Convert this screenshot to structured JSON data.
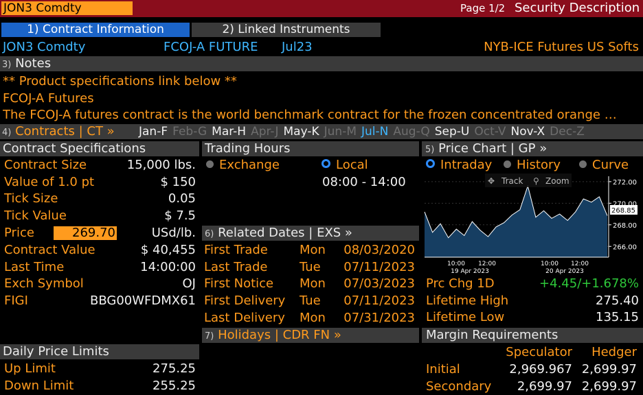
{
  "topbar": {
    "ticker": "JON3 Comdty",
    "page": "Page 1/2",
    "title": "Security Description"
  },
  "tabs": [
    {
      "label": "1) Contract Information"
    },
    {
      "label": "2) Linked Instruments"
    }
  ],
  "security": {
    "ticker": "JON3 Comdty",
    "name": "FCOJ-A FUTURE",
    "month": "Jul23",
    "exchange": "NYB-ICE Futures US Softs"
  },
  "notes": {
    "header_num": "3)",
    "header": "Notes",
    "link_text": "** Product specifications link below **",
    "name": "FCOJ-A Futures",
    "description": "The FCOJ-A futures contract is the world benchmark contract for the frozen concentrated orange …"
  },
  "contracts": {
    "label_num": "4)",
    "label": "Contracts | CT »",
    "months": [
      {
        "label": "Jan-F",
        "state": "active"
      },
      {
        "label": "Feb-G",
        "state": "inactive"
      },
      {
        "label": "Mar-H",
        "state": "active"
      },
      {
        "label": "Apr-J",
        "state": "inactive"
      },
      {
        "label": "May-K",
        "state": "active"
      },
      {
        "label": "Jun-M",
        "state": "inactive"
      },
      {
        "label": "Jul-N",
        "state": "current"
      },
      {
        "label": "Aug-Q",
        "state": "inactive"
      },
      {
        "label": "Sep-U",
        "state": "active"
      },
      {
        "label": "Oct-V",
        "state": "inactive"
      },
      {
        "label": "Nov-X",
        "state": "active"
      },
      {
        "label": "Dec-Z",
        "state": "inactive"
      }
    ]
  },
  "specs": {
    "header": "Contract Specifications",
    "rows": [
      {
        "label": "Contract Size",
        "value": "15,000 lbs."
      },
      {
        "label": "Value of 1.0 pt",
        "value": "$ 150"
      },
      {
        "label": "Tick Size",
        "value": "0.05"
      },
      {
        "label": "Tick Value",
        "value": "$ 7.5"
      }
    ],
    "price_label": "Price",
    "price_value": "269.70",
    "price_unit": "USd/lb.",
    "rows2": [
      {
        "label": "Contract Value",
        "value": "$ 40,455"
      },
      {
        "label": "Last Time",
        "value": "14:00:00"
      },
      {
        "label": "Exch Symbol",
        "value": "OJ"
      },
      {
        "label": "FIGI",
        "value": "BBG00WFDMX61"
      }
    ]
  },
  "trading_hours": {
    "header": "Trading Hours",
    "exchange": "Exchange",
    "local": "Local",
    "hours": "08:00 - 14:00"
  },
  "related_dates": {
    "header_num": "6)",
    "header": "Related Dates | EXS »",
    "rows": [
      {
        "label": "First Trade",
        "day": "Mon",
        "date": "08/03/2020"
      },
      {
        "label": "Last Trade",
        "day": "Tue",
        "date": "07/11/2023"
      },
      {
        "label": "First Notice",
        "day": "Mon",
        "date": "07/03/2023"
      },
      {
        "label": "First Delivery",
        "day": "Tue",
        "date": "07/11/2023"
      },
      {
        "label": "Last Delivery",
        "day": "Mon",
        "date": "07/31/2023"
      }
    ],
    "holidays_num": "7)",
    "holidays": "Holidays | CDR FN »"
  },
  "price_chart": {
    "header_num": "5)",
    "header": "Price Chart | GP »",
    "modes": [
      "Intraday",
      "History",
      "Curve"
    ],
    "track": "Track",
    "zoom": "Zoom",
    "last_label": "268.85",
    "y_ticks": [
      "272.00",
      "270.00",
      "268.00",
      "266.00"
    ],
    "x_times": [
      "10:00",
      "12:00",
      "10:00",
      "12:00"
    ],
    "x_dates": [
      "19 Apr 2023",
      "20 Apr 2023"
    ]
  },
  "chart_data": {
    "type": "area",
    "x": [
      "19 Apr 09:00",
      "19 Apr 09:30",
      "19 Apr 10:00",
      "19 Apr 10:30",
      "19 Apr 11:00",
      "19 Apr 11:30",
      "19 Apr 12:00",
      "19 Apr 12:30",
      "19 Apr 13:00",
      "19 Apr 13:30",
      "19 Apr 14:00",
      "20 Apr 08:00",
      "20 Apr 08:30",
      "20 Apr 09:00",
      "20 Apr 09:30",
      "20 Apr 10:00",
      "20 Apr 10:30",
      "20 Apr 11:00",
      "20 Apr 11:30",
      "20 Apr 12:00",
      "20 Apr 12:30",
      "20 Apr 13:00",
      "20 Apr 13:30",
      "20 Apr 14:00"
    ],
    "values": [
      269.2,
      267.3,
      268.1,
      266.8,
      267.6,
      267.0,
      268.3,
      267.5,
      266.9,
      267.8,
      268.2,
      268.9,
      269.4,
      271.6,
      268.7,
      269.3,
      268.6,
      269.0,
      268.4,
      269.2,
      270.4,
      270.1,
      270.6,
      268.85
    ],
    "ylim": [
      265.0,
      272.5
    ]
  },
  "stats": [
    {
      "label": "Prc Chg 1D",
      "value": "+4.45/+1.678%"
    },
    {
      "label": "Lifetime High",
      "value": "275.40"
    },
    {
      "label": "Lifetime Low",
      "value": "135.15"
    }
  ],
  "margin": {
    "header": "Margin Requirements",
    "col1": "Speculator",
    "col2": "Hedger",
    "rows": [
      {
        "label": "Initial",
        "spec": "2,969.967",
        "hedge": "2,699.97"
      },
      {
        "label": "Secondary",
        "spec": "2,699.97",
        "hedge": "2,699.97"
      }
    ]
  },
  "limits": {
    "header": "Daily Price Limits",
    "rows": [
      {
        "label": "Up Limit",
        "value": "275.25"
      },
      {
        "label": "Down Limit",
        "value": "255.25"
      }
    ]
  }
}
